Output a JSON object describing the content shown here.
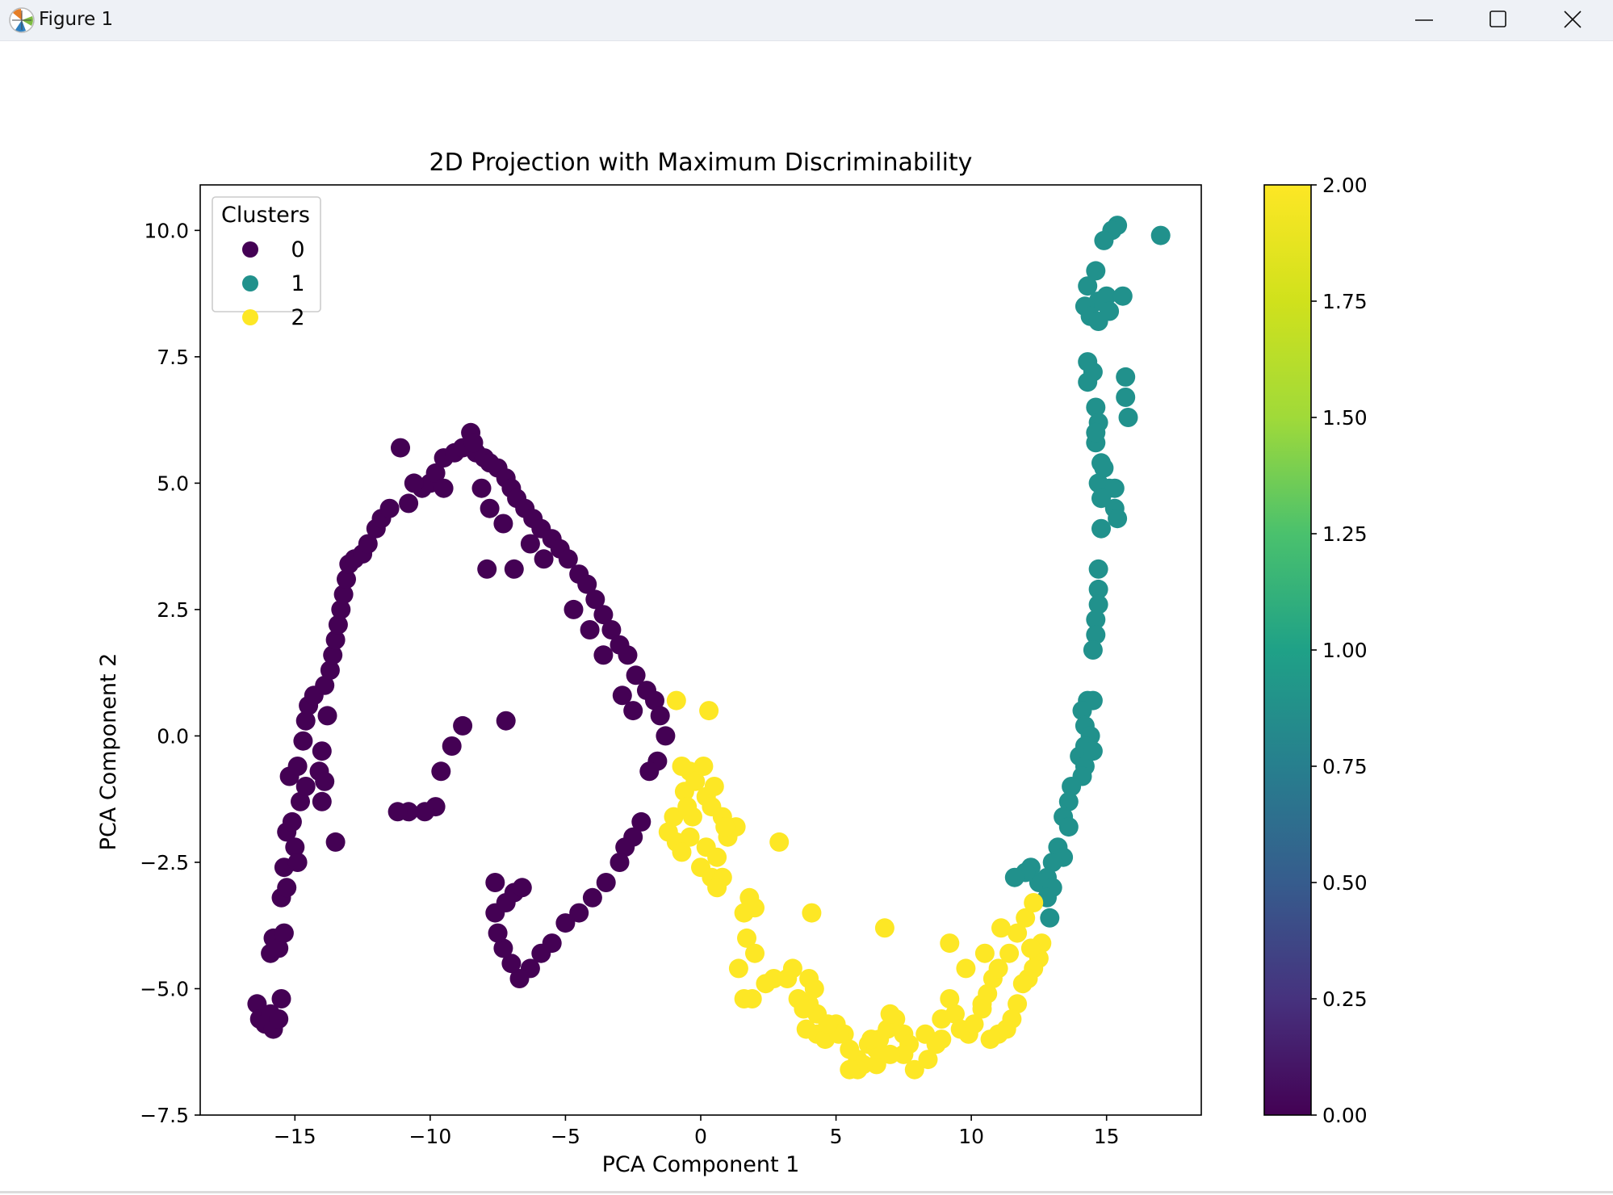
{
  "window": {
    "title": "Figure 1",
    "controls": [
      "minimize",
      "maximize",
      "close"
    ],
    "icon": "matplotlib-icon"
  },
  "chart_data": {
    "type": "scatter",
    "title": "2D Projection with Maximum Discriminability",
    "xlabel": "PCA Component 1",
    "ylabel": "PCA Component 2",
    "xlim": [
      -18.5,
      18.5
    ],
    "ylim": [
      -7.5,
      10.9
    ],
    "xticks": [
      -15,
      -10,
      -5,
      0,
      5,
      10,
      15
    ],
    "xtick_labels": [
      "−15",
      "−10",
      "−5",
      "0",
      "5",
      "10",
      "15"
    ],
    "yticks": [
      -7.5,
      -5.0,
      -2.5,
      0.0,
      2.5,
      5.0,
      7.5,
      10.0
    ],
    "ytick_labels": [
      "−7.5",
      "−5.0",
      "−2.5",
      "0.0",
      "2.5",
      "5.0",
      "7.5",
      "10.0"
    ],
    "grid": false,
    "legend": {
      "title": "Clusters",
      "position": "top-left",
      "entries": [
        {
          "label": "0",
          "color": "#440154"
        },
        {
          "label": "1",
          "color": "#21918c"
        },
        {
          "label": "2",
          "color": "#fde725"
        }
      ]
    },
    "colorbar": {
      "range": [
        0.0,
        2.0
      ],
      "ticks": [
        0.0,
        0.25,
        0.5,
        0.75,
        1.0,
        1.25,
        1.5,
        1.75,
        2.0
      ],
      "tick_labels": [
        "0.00",
        "0.25",
        "0.50",
        "0.75",
        "1.00",
        "1.25",
        "1.50",
        "1.75",
        "2.00"
      ],
      "colormap": "viridis"
    },
    "series": [
      {
        "name": "0",
        "color": "#440154",
        "points": [
          [
            -16.4,
            -5.3
          ],
          [
            -16.3,
            -5.6
          ],
          [
            -16.1,
            -5.7
          ],
          [
            -15.9,
            -5.5
          ],
          [
            -15.8,
            -5.8
          ],
          [
            -15.6,
            -5.6
          ],
          [
            -15.5,
            -5.2
          ],
          [
            -15.9,
            -4.3
          ],
          [
            -15.8,
            -4.0
          ],
          [
            -15.6,
            -4.2
          ],
          [
            -15.4,
            -3.9
          ],
          [
            -15.5,
            -3.2
          ],
          [
            -15.3,
            -3.0
          ],
          [
            -15.4,
            -2.6
          ],
          [
            -15.3,
            -1.9
          ],
          [
            -15.1,
            -1.7
          ],
          [
            -15.0,
            -2.2
          ],
          [
            -14.9,
            -2.5
          ],
          [
            -14.8,
            -1.3
          ],
          [
            -14.6,
            -1.0
          ],
          [
            -15.2,
            -0.8
          ],
          [
            -14.9,
            -0.6
          ],
          [
            -14.7,
            -0.1
          ],
          [
            -14.6,
            0.3
          ],
          [
            -14.5,
            0.6
          ],
          [
            -14.3,
            0.8
          ],
          [
            -14.0,
            -0.3
          ],
          [
            -14.1,
            -0.7
          ],
          [
            -13.9,
            -0.9
          ],
          [
            -14.0,
            -1.3
          ],
          [
            -13.8,
            0.4
          ],
          [
            -13.9,
            1.0
          ],
          [
            -13.7,
            1.3
          ],
          [
            -13.6,
            1.6
          ],
          [
            -13.5,
            1.9
          ],
          [
            -13.4,
            2.2
          ],
          [
            -13.3,
            2.5
          ],
          [
            -13.2,
            2.8
          ],
          [
            -13.1,
            3.1
          ],
          [
            -13.0,
            3.4
          ],
          [
            -12.8,
            3.5
          ],
          [
            -12.5,
            3.6
          ],
          [
            -12.3,
            3.8
          ],
          [
            -12.0,
            4.1
          ],
          [
            -11.8,
            4.3
          ],
          [
            -11.5,
            4.5
          ],
          [
            -11.1,
            5.7
          ],
          [
            -10.8,
            4.6
          ],
          [
            -10.3,
            4.9
          ],
          [
            -10.0,
            5.0
          ],
          [
            -9.8,
            5.2
          ],
          [
            -9.5,
            5.5
          ],
          [
            -9.1,
            5.6
          ],
          [
            -8.8,
            5.7
          ],
          [
            -8.5,
            6.0
          ],
          [
            -8.3,
            5.6
          ],
          [
            -8.0,
            5.5
          ],
          [
            -7.8,
            5.4
          ],
          [
            -7.5,
            5.3
          ],
          [
            -7.2,
            5.1
          ],
          [
            -7.0,
            4.9
          ],
          [
            -6.8,
            4.7
          ],
          [
            -6.5,
            4.5
          ],
          [
            -6.2,
            4.3
          ],
          [
            -5.9,
            4.1
          ],
          [
            -5.5,
            3.9
          ],
          [
            -5.2,
            3.7
          ],
          [
            -4.9,
            3.5
          ],
          [
            -4.5,
            3.2
          ],
          [
            -4.2,
            3.0
          ],
          [
            -3.9,
            2.7
          ],
          [
            -3.6,
            2.4
          ],
          [
            -3.3,
            2.1
          ],
          [
            -3.0,
            1.8
          ],
          [
            -2.7,
            1.6
          ],
          [
            -2.4,
            1.2
          ],
          [
            -2.0,
            0.9
          ],
          [
            -1.7,
            0.7
          ],
          [
            -1.5,
            0.4
          ],
          [
            -1.3,
            0.0
          ],
          [
            -1.6,
            -0.5
          ],
          [
            -1.9,
            -0.7
          ],
          [
            -2.2,
            -1.7
          ],
          [
            -2.5,
            -2.0
          ],
          [
            -2.8,
            -2.2
          ],
          [
            -3.0,
            -2.5
          ],
          [
            -3.5,
            -2.9
          ],
          [
            -4.0,
            -3.2
          ],
          [
            -4.5,
            -3.5
          ],
          [
            -5.0,
            -3.7
          ],
          [
            -5.5,
            -4.1
          ],
          [
            -5.9,
            -4.3
          ],
          [
            -6.3,
            -4.6
          ],
          [
            -6.7,
            -4.8
          ],
          [
            -7.0,
            -4.5
          ],
          [
            -7.3,
            -4.2
          ],
          [
            -7.5,
            -3.9
          ],
          [
            -7.6,
            -3.5
          ],
          [
            -7.2,
            -3.3
          ],
          [
            -6.9,
            -3.1
          ],
          [
            -7.6,
            -2.9
          ],
          [
            -6.6,
            -3.0
          ],
          [
            -9.6,
            -0.7
          ],
          [
            -9.2,
            -0.2
          ],
          [
            -8.8,
            0.2
          ],
          [
            -7.2,
            0.3
          ],
          [
            -9.8,
            -1.4
          ],
          [
            -10.2,
            -1.5
          ],
          [
            -10.8,
            -1.5
          ],
          [
            -11.2,
            -1.5
          ],
          [
            -13.5,
            -2.1
          ],
          [
            -8.1,
            4.9
          ],
          [
            -7.8,
            4.5
          ],
          [
            -7.3,
            4.2
          ],
          [
            -6.9,
            3.3
          ],
          [
            -6.3,
            3.8
          ],
          [
            -5.8,
            3.5
          ],
          [
            -4.7,
            2.5
          ],
          [
            -4.1,
            2.1
          ],
          [
            -3.6,
            1.6
          ],
          [
            -2.9,
            0.8
          ],
          [
            -2.5,
            0.5
          ],
          [
            -7.9,
            3.3
          ],
          [
            -9.5,
            4.9
          ],
          [
            -10.6,
            5.0
          ],
          [
            -8.4,
            5.8
          ]
        ]
      },
      {
        "name": "1",
        "color": "#21918c",
        "points": [
          [
            17.0,
            9.9
          ],
          [
            15.4,
            10.1
          ],
          [
            15.2,
            10.0
          ],
          [
            14.9,
            9.8
          ],
          [
            14.6,
            9.2
          ],
          [
            14.3,
            8.9
          ],
          [
            14.7,
            8.6
          ],
          [
            15.0,
            8.7
          ],
          [
            15.6,
            8.7
          ],
          [
            14.2,
            8.5
          ],
          [
            14.4,
            8.3
          ],
          [
            14.7,
            8.2
          ],
          [
            15.1,
            8.4
          ],
          [
            14.3,
            7.4
          ],
          [
            14.5,
            7.2
          ],
          [
            15.7,
            7.1
          ],
          [
            15.7,
            6.7
          ],
          [
            15.8,
            6.3
          ],
          [
            14.6,
            6.5
          ],
          [
            14.7,
            6.2
          ],
          [
            14.6,
            5.8
          ],
          [
            14.8,
            5.4
          ],
          [
            14.7,
            5.0
          ],
          [
            15.1,
            4.9
          ],
          [
            15.3,
            4.9
          ],
          [
            14.8,
            4.7
          ],
          [
            15.3,
            4.5
          ],
          [
            15.4,
            4.3
          ],
          [
            14.8,
            4.1
          ],
          [
            14.7,
            3.3
          ],
          [
            14.7,
            2.9
          ],
          [
            14.7,
            2.6
          ],
          [
            14.6,
            2.3
          ],
          [
            14.6,
            2.0
          ],
          [
            14.5,
            1.7
          ],
          [
            14.3,
            0.7
          ],
          [
            14.5,
            0.7
          ],
          [
            14.1,
            0.5
          ],
          [
            14.2,
            0.2
          ],
          [
            14.4,
            0.0
          ],
          [
            14.2,
            -0.2
          ],
          [
            14.0,
            -0.4
          ],
          [
            14.2,
            -0.6
          ],
          [
            14.1,
            -0.8
          ],
          [
            13.7,
            -1.0
          ],
          [
            13.6,
            -1.3
          ],
          [
            13.4,
            -1.6
          ],
          [
            13.6,
            -1.8
          ],
          [
            13.2,
            -2.2
          ],
          [
            13.4,
            -2.4
          ],
          [
            13.0,
            -2.5
          ],
          [
            12.8,
            -2.8
          ],
          [
            12.5,
            -2.9
          ],
          [
            12.2,
            -2.6
          ],
          [
            12.0,
            -2.7
          ],
          [
            11.6,
            -2.8
          ],
          [
            13.0,
            -3.0
          ],
          [
            12.8,
            -3.2
          ],
          [
            12.9,
            -3.6
          ],
          [
            14.5,
            -0.3
          ],
          [
            14.3,
            7.0
          ],
          [
            14.6,
            6.0
          ],
          [
            14.9,
            5.3
          ]
        ]
      },
      {
        "name": "2",
        "color": "#fde725",
        "points": [
          [
            -0.9,
            0.7
          ],
          [
            0.3,
            0.5
          ],
          [
            -0.7,
            -0.6
          ],
          [
            -0.4,
            -0.7
          ],
          [
            -0.2,
            -0.9
          ],
          [
            -0.6,
            -1.1
          ],
          [
            0.2,
            -1.2
          ],
          [
            0.4,
            -1.4
          ],
          [
            0.8,
            -1.6
          ],
          [
            -1.0,
            -1.6
          ],
          [
            -1.2,
            -1.9
          ],
          [
            -0.9,
            -2.1
          ],
          [
            -0.4,
            -2.0
          ],
          [
            -0.7,
            -2.3
          ],
          [
            0.2,
            -2.2
          ],
          [
            0.6,
            -2.4
          ],
          [
            1.0,
            -2.0
          ],
          [
            1.3,
            -1.8
          ],
          [
            0.0,
            -2.6
          ],
          [
            0.4,
            -2.8
          ],
          [
            0.8,
            -2.8
          ],
          [
            0.6,
            -3.0
          ],
          [
            1.8,
            -3.2
          ],
          [
            2.0,
            -3.4
          ],
          [
            1.6,
            -3.5
          ],
          [
            2.9,
            -2.1
          ],
          [
            4.1,
            -3.5
          ],
          [
            1.7,
            -4.0
          ],
          [
            2.0,
            -4.3
          ],
          [
            1.4,
            -4.6
          ],
          [
            2.7,
            -4.8
          ],
          [
            3.4,
            -4.6
          ],
          [
            4.0,
            -4.8
          ],
          [
            4.2,
            -5.0
          ],
          [
            3.6,
            -5.2
          ],
          [
            4.0,
            -5.3
          ],
          [
            4.3,
            -5.5
          ],
          [
            1.6,
            -5.2
          ],
          [
            1.9,
            -5.2
          ],
          [
            3.9,
            -5.8
          ],
          [
            4.3,
            -5.9
          ],
          [
            4.6,
            -6.0
          ],
          [
            5.0,
            -5.7
          ],
          [
            5.3,
            -5.9
          ],
          [
            5.5,
            -6.2
          ],
          [
            5.8,
            -6.4
          ],
          [
            6.2,
            -6.1
          ],
          [
            6.6,
            -6.0
          ],
          [
            6.9,
            -5.8
          ],
          [
            7.2,
            -5.6
          ],
          [
            7.5,
            -5.9
          ],
          [
            7.7,
            -6.1
          ],
          [
            7.5,
            -6.3
          ],
          [
            7.0,
            -6.3
          ],
          [
            6.5,
            -6.5
          ],
          [
            6.0,
            -6.5
          ],
          [
            5.8,
            -6.6
          ],
          [
            5.5,
            -6.6
          ],
          [
            6.8,
            -3.8
          ],
          [
            8.9,
            -5.6
          ],
          [
            9.2,
            -5.2
          ],
          [
            9.4,
            -5.5
          ],
          [
            9.6,
            -5.8
          ],
          [
            9.9,
            -5.9
          ],
          [
            10.1,
            -5.7
          ],
          [
            10.4,
            -5.3
          ],
          [
            10.6,
            -5.1
          ],
          [
            10.8,
            -4.8
          ],
          [
            11.0,
            -4.6
          ],
          [
            11.4,
            -4.3
          ],
          [
            11.7,
            -3.9
          ],
          [
            12.0,
            -3.6
          ],
          [
            12.3,
            -3.3
          ],
          [
            12.6,
            -4.1
          ],
          [
            12.5,
            -4.4
          ],
          [
            12.3,
            -4.6
          ],
          [
            12.1,
            -4.8
          ],
          [
            11.9,
            -4.9
          ],
          [
            11.7,
            -5.3
          ],
          [
            11.5,
            -5.6
          ],
          [
            11.3,
            -5.8
          ],
          [
            11.0,
            -5.9
          ],
          [
            10.7,
            -6.0
          ],
          [
            10.4,
            -5.4
          ],
          [
            9.2,
            -4.1
          ],
          [
            8.9,
            -6.0
          ],
          [
            8.7,
            -6.1
          ],
          [
            8.3,
            -5.9
          ],
          [
            7.9,
            -6.6
          ],
          [
            8.4,
            -6.4
          ],
          [
            7.0,
            -5.5
          ],
          [
            6.5,
            -6.2
          ],
          [
            6.3,
            -6.0
          ],
          [
            5.1,
            -5.9
          ],
          [
            4.7,
            -5.7
          ],
          [
            3.8,
            -5.4
          ],
          [
            0.9,
            -1.8
          ],
          [
            -0.3,
            -1.6
          ],
          [
            0.1,
            -0.6
          ],
          [
            0.5,
            -1.0
          ],
          [
            -0.5,
            -1.4
          ],
          [
            11.1,
            -3.8
          ],
          [
            12.2,
            -4.2
          ],
          [
            3.2,
            -4.8
          ],
          [
            2.4,
            -4.9
          ],
          [
            10.5,
            -4.3
          ],
          [
            9.8,
            -4.6
          ]
        ]
      }
    ]
  }
}
